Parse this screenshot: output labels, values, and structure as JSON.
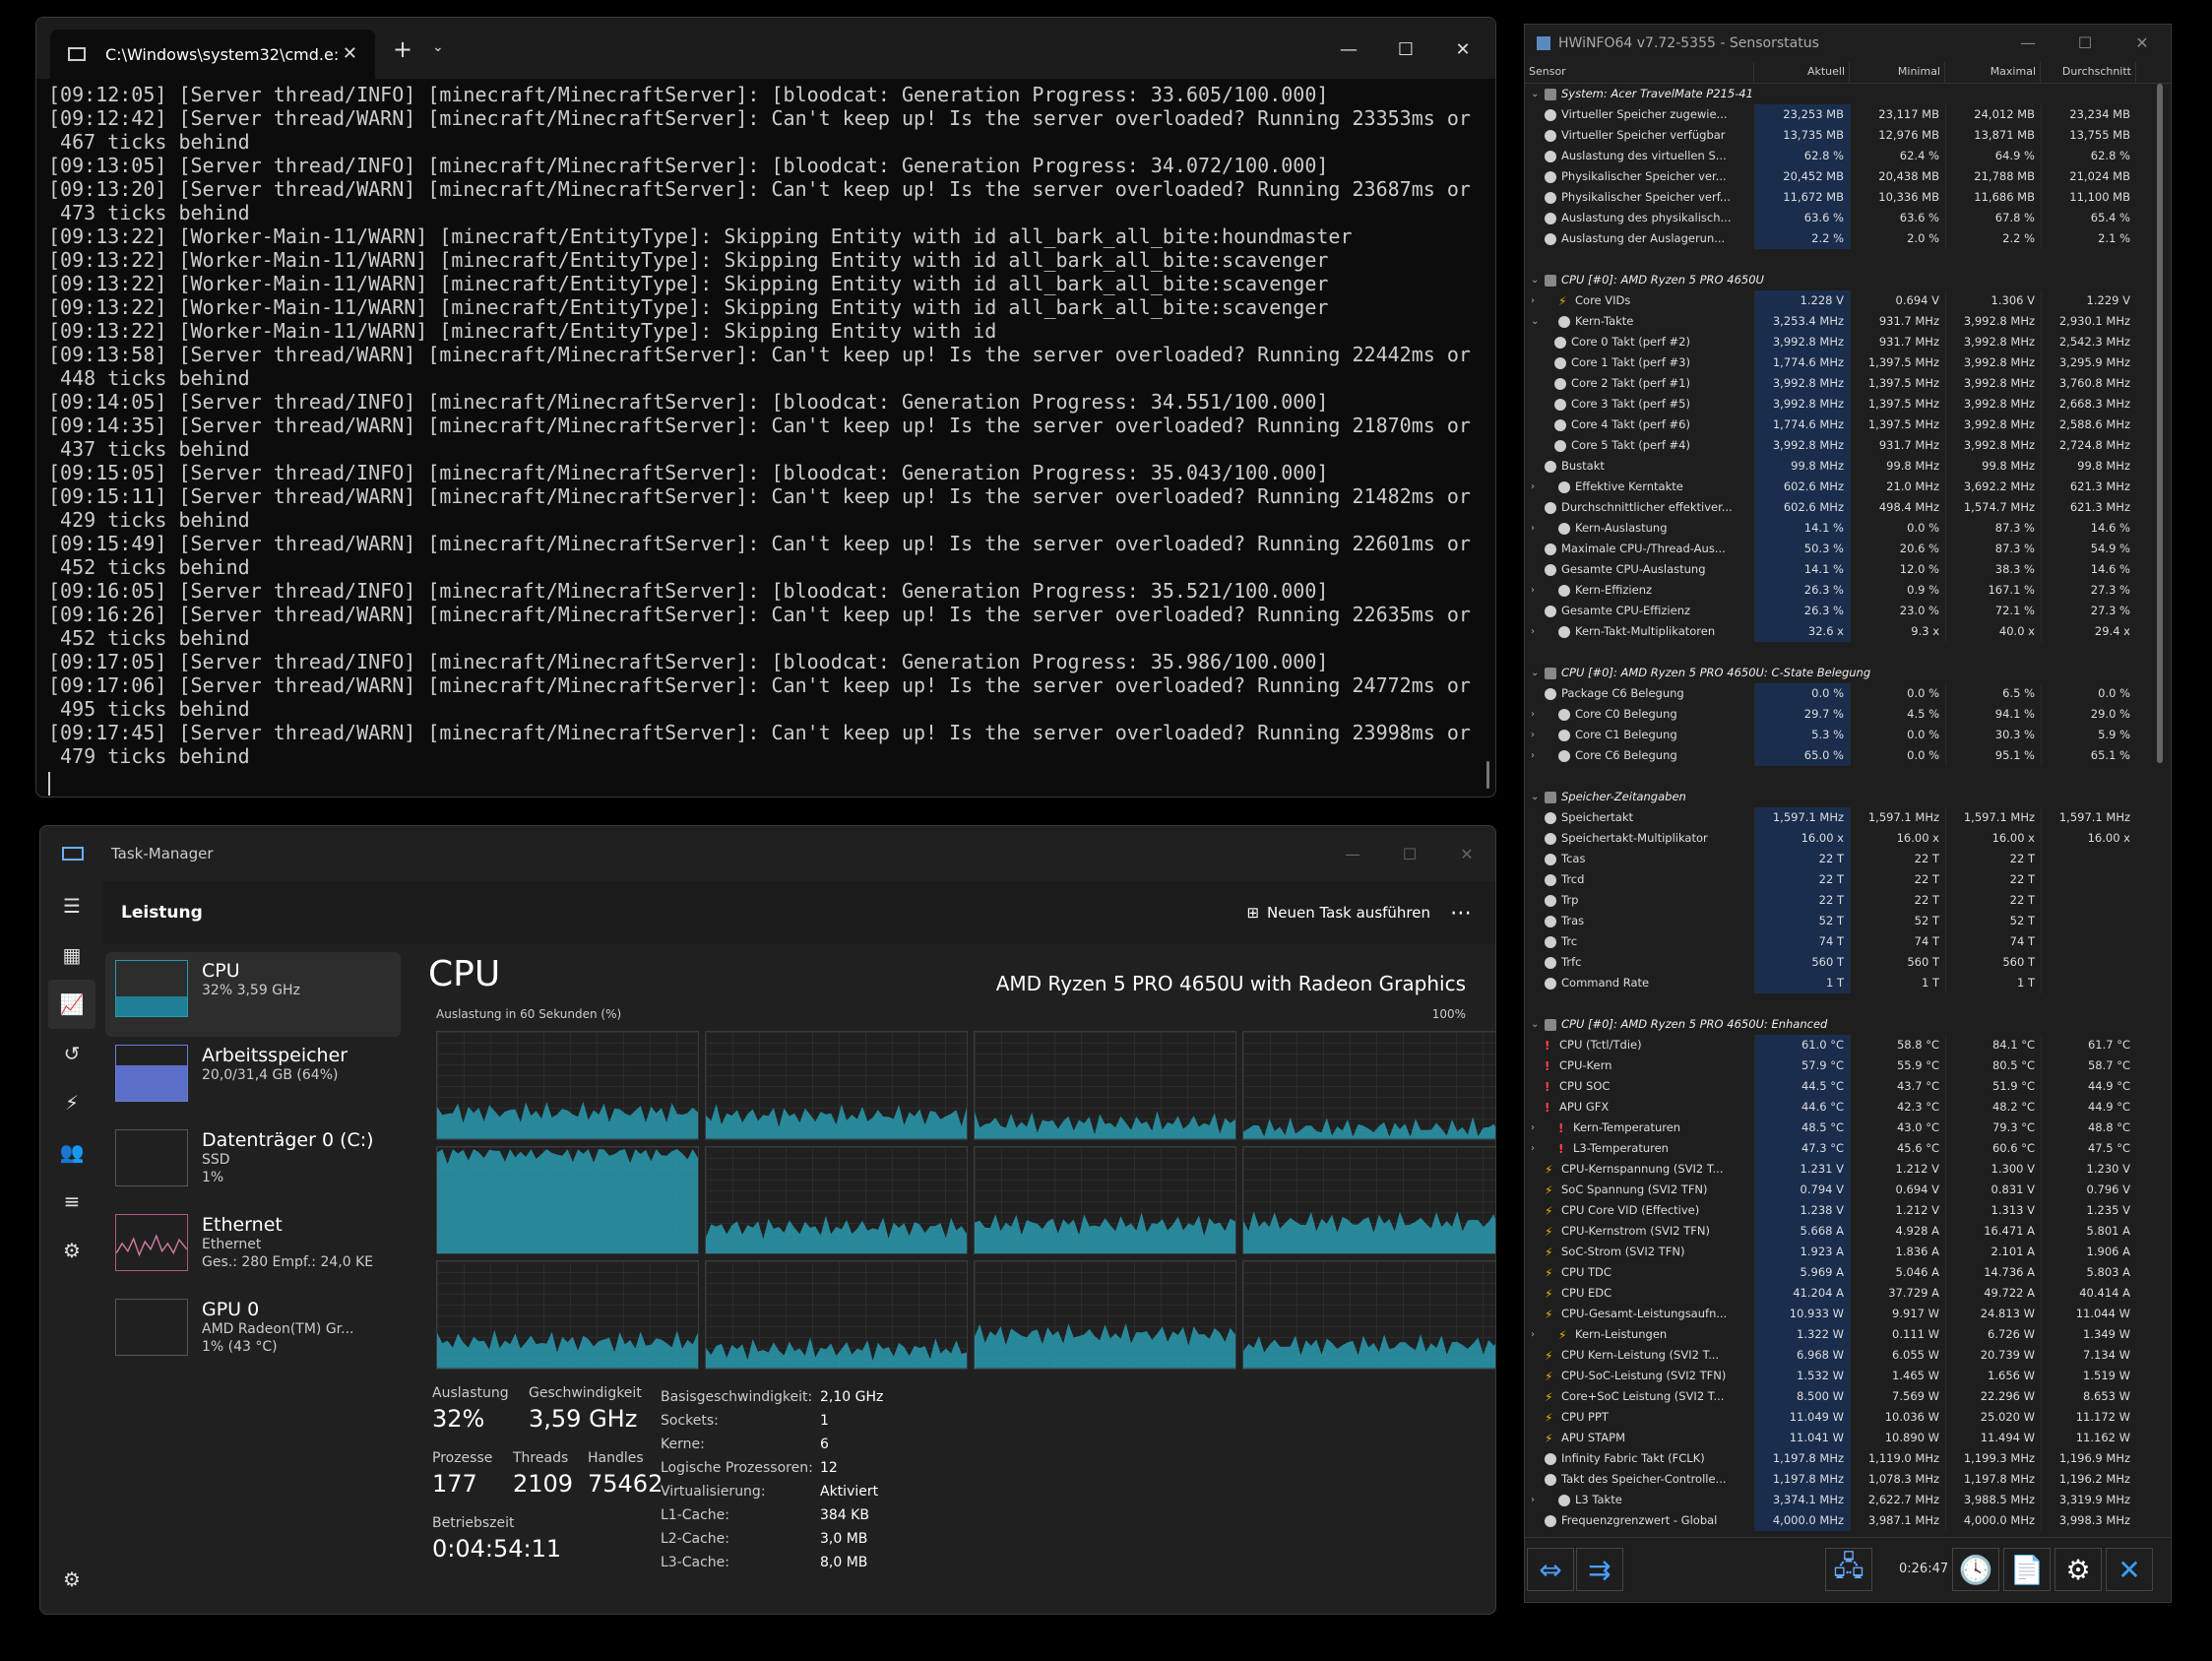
{
  "terminal": {
    "tab_title": "C:\\Windows\\system32\\cmd.e:",
    "lines": [
      "[09:12:05] [Server thread/INFO] [minecraft/MinecraftServer]: [bloodcat: Generation Progress: 33.605/100.000]",
      "[09:12:42] [Server thread/WARN] [minecraft/MinecraftServer]: Can't keep up! Is the server overloaded? Running 23353ms or",
      " 467 ticks behind",
      "[09:13:05] [Server thread/INFO] [minecraft/MinecraftServer]: [bloodcat: Generation Progress: 34.072/100.000]",
      "[09:13:20] [Server thread/WARN] [minecraft/MinecraftServer]: Can't keep up! Is the server overloaded? Running 23687ms or",
      " 473 ticks behind",
      "[09:13:22] [Worker-Main-11/WARN] [minecraft/EntityType]: Skipping Entity with id all_bark_all_bite:houndmaster",
      "[09:13:22] [Worker-Main-11/WARN] [minecraft/EntityType]: Skipping Entity with id all_bark_all_bite:scavenger",
      "[09:13:22] [Worker-Main-11/WARN] [minecraft/EntityType]: Skipping Entity with id all_bark_all_bite:scavenger",
      "[09:13:22] [Worker-Main-11/WARN] [minecraft/EntityType]: Skipping Entity with id all_bark_all_bite:scavenger",
      "[09:13:22] [Worker-Main-11/WARN] [minecraft/EntityType]: Skipping Entity with id",
      "[09:13:58] [Server thread/WARN] [minecraft/MinecraftServer]: Can't keep up! Is the server overloaded? Running 22442ms or",
      " 448 ticks behind",
      "[09:14:05] [Server thread/INFO] [minecraft/MinecraftServer]: [bloodcat: Generation Progress: 34.551/100.000]",
      "[09:14:35] [Server thread/WARN] [minecraft/MinecraftServer]: Can't keep up! Is the server overloaded? Running 21870ms or",
      " 437 ticks behind",
      "[09:15:05] [Server thread/INFO] [minecraft/MinecraftServer]: [bloodcat: Generation Progress: 35.043/100.000]",
      "[09:15:11] [Server thread/WARN] [minecraft/MinecraftServer]: Can't keep up! Is the server overloaded? Running 21482ms or",
      " 429 ticks behind",
      "[09:15:49] [Server thread/WARN] [minecraft/MinecraftServer]: Can't keep up! Is the server overloaded? Running 22601ms or",
      " 452 ticks behind",
      "[09:16:05] [Server thread/INFO] [minecraft/MinecraftServer]: [bloodcat: Generation Progress: 35.521/100.000]",
      "[09:16:26] [Server thread/WARN] [minecraft/MinecraftServer]: Can't keep up! Is the server overloaded? Running 22635ms or",
      " 452 ticks behind",
      "[09:17:05] [Server thread/INFO] [minecraft/MinecraftServer]: [bloodcat: Generation Progress: 35.986/100.000]",
      "[09:17:06] [Server thread/WARN] [minecraft/MinecraftServer]: Can't keep up! Is the server overloaded? Running 24772ms or",
      " 495 ticks behind",
      "[09:17:45] [Server thread/WARN] [minecraft/MinecraftServer]: Can't keep up! Is the server overloaded? Running 23998ms or",
      " 479 ticks behind"
    ]
  },
  "taskmanager": {
    "title": "Task-Manager",
    "header": "Leistung",
    "new_task": "Neuen Task ausführen",
    "sidebar": [
      {
        "name": "CPU",
        "sub1": "32% 3,59 GHz",
        "sub2": ""
      },
      {
        "name": "Arbeitsspeicher",
        "sub1": "20,0/31,4 GB (64%)",
        "sub2": ""
      },
      {
        "name": "Datenträger 0 (C:)",
        "sub1": "SSD",
        "sub2": "1%"
      },
      {
        "name": "Ethernet",
        "sub1": "Ethernet",
        "sub2": "Ges.: 280 Empf.: 24,0 KE"
      },
      {
        "name": "GPU 0",
        "sub1": "AMD Radeon(TM) Gr...",
        "sub2": "1% (43 °C)"
      }
    ],
    "cpu_title": "CPU",
    "cpu_model": "AMD Ryzen 5 PRO 4650U with Radeon Graphics",
    "graph_caption": "Auslastung in 60 Sekunden (%)",
    "graph_max": "100%",
    "stats": {
      "util_label": "Auslastung",
      "util": "32%",
      "speed_label": "Geschwindigkeit",
      "speed": "3,59 GHz",
      "proc_label": "Prozesse",
      "proc": "177",
      "threads_label": "Threads",
      "threads": "2109",
      "handles_label": "Handles",
      "handles": "75462",
      "uptime_label": "Betriebszeit",
      "uptime": "0:04:54:11"
    },
    "details": [
      [
        "Basisgeschwindigkeit:",
        "2,10 GHz"
      ],
      [
        "Sockets:",
        "1"
      ],
      [
        "Kerne:",
        "6"
      ],
      [
        "Logische Prozessoren:",
        "12"
      ],
      [
        "Virtualisierung:",
        "Aktiviert"
      ],
      [
        "L1-Cache:",
        "384 KB"
      ],
      [
        "L2-Cache:",
        "3,0 MB"
      ],
      [
        "L3-Cache:",
        "8,0 MB"
      ]
    ],
    "accent": "#2a9bb0"
  },
  "hwinfo": {
    "title": "HWiNFO64 v7.72-5355 - Sensorstatus",
    "columns": [
      "Sensor",
      "Aktuell",
      "Minimal",
      "Maximal",
      "Durchschnitt"
    ],
    "rows": [
      {
        "t": "g",
        "n": "System: Acer TravelMate P215-41"
      },
      {
        "i": "o",
        "n": "Virtueller Speicher zugewie...",
        "v": [
          "23,253 MB",
          "23,117 MB",
          "24,012 MB",
          "23,234 MB"
        ]
      },
      {
        "i": "o",
        "n": "Virtueller Speicher verfügbar",
        "v": [
          "13,735 MB",
          "12,976 MB",
          "13,871 MB",
          "13,755 MB"
        ]
      },
      {
        "i": "o",
        "n": "Auslastung des virtuellen S...",
        "v": [
          "62.8 %",
          "62.4 %",
          "64.9 %",
          "62.8 %"
        ]
      },
      {
        "i": "o",
        "n": "Physikalischer Speicher ver...",
        "v": [
          "20,452 MB",
          "20,438 MB",
          "21,788 MB",
          "21,024 MB"
        ]
      },
      {
        "i": "o",
        "n": "Physikalischer Speicher verf...",
        "v": [
          "11,672 MB",
          "10,336 MB",
          "11,686 MB",
          "11,100 MB"
        ]
      },
      {
        "i": "o",
        "n": "Auslastung des physikalisch...",
        "v": [
          "63.6 %",
          "63.6 %",
          "67.8 %",
          "65.4 %"
        ]
      },
      {
        "i": "o",
        "n": "Auslastung der Auslagerun...",
        "v": [
          "2.2 %",
          "2.0 %",
          "2.2 %",
          "2.1 %"
        ]
      },
      {
        "t": "b"
      },
      {
        "t": "g",
        "n": "CPU [#0]: AMD Ryzen 5 PRO 4650U"
      },
      {
        "i": "v",
        "x": 1,
        "n": "Core VIDs",
        "v": [
          "1.228 V",
          "0.694 V",
          "1.306 V",
          "1.229 V"
        ]
      },
      {
        "i": "o",
        "x": 2,
        "n": "Kern-Takte",
        "v": [
          "3,253.4 MHz",
          "931.7 MHz",
          "3,992.8 MHz",
          "2,930.1 MHz"
        ]
      },
      {
        "i": "o",
        "d": 1,
        "n": "Core 0 Takt (perf #2)",
        "v": [
          "3,992.8 MHz",
          "931.7 MHz",
          "3,992.8 MHz",
          "2,542.3 MHz"
        ]
      },
      {
        "i": "o",
        "d": 1,
        "n": "Core 1 Takt (perf #3)",
        "v": [
          "1,774.6 MHz",
          "1,397.5 MHz",
          "3,992.8 MHz",
          "3,295.9 MHz"
        ]
      },
      {
        "i": "o",
        "d": 1,
        "n": "Core 2 Takt (perf #1)",
        "v": [
          "3,992.8 MHz",
          "1,397.5 MHz",
          "3,992.8 MHz",
          "3,760.8 MHz"
        ]
      },
      {
        "i": "o",
        "d": 1,
        "n": "Core 3 Takt (perf #5)",
        "v": [
          "3,992.8 MHz",
          "1,397.5 MHz",
          "3,992.8 MHz",
          "2,668.3 MHz"
        ]
      },
      {
        "i": "o",
        "d": 1,
        "n": "Core 4 Takt (perf #6)",
        "v": [
          "1,774.6 MHz",
          "1,397.5 MHz",
          "3,992.8 MHz",
          "2,588.6 MHz"
        ]
      },
      {
        "i": "o",
        "d": 1,
        "n": "Core 5 Takt (perf #4)",
        "v": [
          "3,992.8 MHz",
          "931.7 MHz",
          "3,992.8 MHz",
          "2,724.8 MHz"
        ]
      },
      {
        "i": "o",
        "n": "Bustakt",
        "v": [
          "99.8 MHz",
          "99.8 MHz",
          "99.8 MHz",
          "99.8 MHz"
        ]
      },
      {
        "i": "o",
        "x": 1,
        "n": "Effektive Kerntakte",
        "v": [
          "602.6 MHz",
          "21.0 MHz",
          "3,692.2 MHz",
          "621.3 MHz"
        ]
      },
      {
        "i": "o",
        "n": "Durchschnittlicher effektiver...",
        "v": [
          "602.6 MHz",
          "498.4 MHz",
          "1,574.7 MHz",
          "621.3 MHz"
        ]
      },
      {
        "i": "o",
        "x": 1,
        "n": "Kern-Auslastung",
        "v": [
          "14.1 %",
          "0.0 %",
          "87.3 %",
          "14.6 %"
        ]
      },
      {
        "i": "o",
        "n": "Maximale CPU-/Thread-Aus...",
        "v": [
          "50.3 %",
          "20.6 %",
          "87.3 %",
          "54.9 %"
        ]
      },
      {
        "i": "o",
        "n": "Gesamte CPU-Auslastung",
        "v": [
          "14.1 %",
          "12.0 %",
          "38.3 %",
          "14.6 %"
        ]
      },
      {
        "i": "o",
        "x": 1,
        "n": "Kern-Effizienz",
        "v": [
          "26.3 %",
          "0.9 %",
          "167.1 %",
          "27.3 %"
        ]
      },
      {
        "i": "o",
        "n": "Gesamte CPU-Effizienz",
        "v": [
          "26.3 %",
          "23.0 %",
          "72.1 %",
          "27.3 %"
        ]
      },
      {
        "i": "o",
        "x": 1,
        "n": "Kern-Takt-Multiplikatoren",
        "v": [
          "32.6 x",
          "9.3 x",
          "40.0 x",
          "29.4 x"
        ]
      },
      {
        "t": "b"
      },
      {
        "t": "g",
        "n": "CPU [#0]: AMD Ryzen 5 PRO 4650U: C-State Belegung"
      },
      {
        "i": "o",
        "n": "Package C6 Belegung",
        "v": [
          "0.0 %",
          "0.0 %",
          "6.5 %",
          "0.0 %"
        ]
      },
      {
        "i": "o",
        "x": 1,
        "n": "Core C0 Belegung",
        "v": [
          "29.7 %",
          "4.5 %",
          "94.1 %",
          "29.0 %"
        ]
      },
      {
        "i": "o",
        "x": 1,
        "n": "Core C1 Belegung",
        "v": [
          "5.3 %",
          "0.0 %",
          "30.3 %",
          "5.9 %"
        ]
      },
      {
        "i": "o",
        "x": 1,
        "n": "Core C6 Belegung",
        "v": [
          "65.0 %",
          "0.0 %",
          "95.1 %",
          "65.1 %"
        ]
      },
      {
        "t": "b"
      },
      {
        "t": "g",
        "n": "Speicher-Zeitangaben"
      },
      {
        "i": "o",
        "n": "Speichertakt",
        "v": [
          "1,597.1 MHz",
          "1,597.1 MHz",
          "1,597.1 MHz",
          "1,597.1 MHz"
        ]
      },
      {
        "i": "o",
        "n": "Speichertakt-Multiplikator",
        "v": [
          "16.00 x",
          "16.00 x",
          "16.00 x",
          "16.00 x"
        ]
      },
      {
        "i": "o",
        "n": "Tcas",
        "v": [
          "22 T",
          "22 T",
          "22 T",
          ""
        ]
      },
      {
        "i": "o",
        "n": "Trcd",
        "v": [
          "22 T",
          "22 T",
          "22 T",
          ""
        ]
      },
      {
        "i": "o",
        "n": "Trp",
        "v": [
          "22 T",
          "22 T",
          "22 T",
          ""
        ]
      },
      {
        "i": "o",
        "n": "Tras",
        "v": [
          "52 T",
          "52 T",
          "52 T",
          ""
        ]
      },
      {
        "i": "o",
        "n": "Trc",
        "v": [
          "74 T",
          "74 T",
          "74 T",
          ""
        ]
      },
      {
        "i": "o",
        "n": "Trfc",
        "v": [
          "560 T",
          "560 T",
          "560 T",
          ""
        ]
      },
      {
        "i": "o",
        "n": "Command Rate",
        "v": [
          "1 T",
          "1 T",
          "1 T",
          ""
        ]
      },
      {
        "t": "b"
      },
      {
        "t": "g",
        "n": "CPU [#0]: AMD Ryzen 5 PRO 4650U: Enhanced"
      },
      {
        "i": "t",
        "n": "CPU (Tctl/Tdie)",
        "v": [
          "61.0 °C",
          "58.8 °C",
          "84.1 °C",
          "61.7 °C"
        ]
      },
      {
        "i": "t",
        "n": "CPU-Kern",
        "v": [
          "57.9 °C",
          "55.9 °C",
          "80.5 °C",
          "58.7 °C"
        ]
      },
      {
        "i": "t",
        "n": "CPU SOC",
        "v": [
          "44.5 °C",
          "43.7 °C",
          "51.9 °C",
          "44.9 °C"
        ]
      },
      {
        "i": "t",
        "n": "APU GFX",
        "v": [
          "44.6 °C",
          "42.3 °C",
          "48.2 °C",
          "44.9 °C"
        ]
      },
      {
        "i": "t",
        "x": 1,
        "n": "Kern-Temperaturen",
        "v": [
          "48.5 °C",
          "43.0 °C",
          "79.3 °C",
          "48.8 °C"
        ]
      },
      {
        "i": "t",
        "x": 1,
        "n": "L3-Temperaturen",
        "v": [
          "47.3 °C",
          "45.6 °C",
          "60.6 °C",
          "47.5 °C"
        ]
      },
      {
        "i": "v",
        "n": "CPU-Kernspannung (SVI2 T...",
        "v": [
          "1.231 V",
          "1.212 V",
          "1.300 V",
          "1.230 V"
        ]
      },
      {
        "i": "v",
        "n": "SoC Spannung (SVI2 TFN)",
        "v": [
          "0.794 V",
          "0.694 V",
          "0.831 V",
          "0.796 V"
        ]
      },
      {
        "i": "v",
        "n": "CPU Core VID (Effective)",
        "v": [
          "1.238 V",
          "1.212 V",
          "1.313 V",
          "1.235 V"
        ]
      },
      {
        "i": "v",
        "n": "CPU-Kernstrom (SVI2 TFN)",
        "v": [
          "5.668 A",
          "4.928 A",
          "16.471 A",
          "5.801 A"
        ]
      },
      {
        "i": "v",
        "n": "SoC-Strom (SVI2 TFN)",
        "v": [
          "1.923 A",
          "1.836 A",
          "2.101 A",
          "1.906 A"
        ]
      },
      {
        "i": "v",
        "n": "CPU TDC",
        "v": [
          "5.969 A",
          "5.046 A",
          "14.736 A",
          "5.803 A"
        ]
      },
      {
        "i": "v",
        "n": "CPU EDC",
        "v": [
          "41.204 A",
          "37.729 A",
          "49.722 A",
          "40.414 A"
        ]
      },
      {
        "i": "v",
        "n": "CPU-Gesamt-Leistungsaufn...",
        "v": [
          "10.933 W",
          "9.917 W",
          "24.813 W",
          "11.044 W"
        ]
      },
      {
        "i": "v",
        "x": 1,
        "n": "Kern-Leistungen",
        "v": [
          "1.322 W",
          "0.111 W",
          "6.726 W",
          "1.349 W"
        ]
      },
      {
        "i": "v",
        "n": "CPU Kern-Leistung (SVI2 T...",
        "v": [
          "6.968 W",
          "6.055 W",
          "20.739 W",
          "7.134 W"
        ]
      },
      {
        "i": "v",
        "n": "CPU-SoC-Leistung (SVI2 TFN)",
        "v": [
          "1.532 W",
          "1.465 W",
          "1.656 W",
          "1.519 W"
        ]
      },
      {
        "i": "v",
        "n": "Core+SoC Leistung (SVI2 T...",
        "v": [
          "8.500 W",
          "7.569 W",
          "22.296 W",
          "8.653 W"
        ]
      },
      {
        "i": "v",
        "n": "CPU PPT",
        "v": [
          "11.049 W",
          "10.036 W",
          "25.020 W",
          "11.172 W"
        ]
      },
      {
        "i": "v",
        "n": "APU STAPM",
        "v": [
          "11.041 W",
          "10.890 W",
          "11.494 W",
          "11.162 W"
        ]
      },
      {
        "i": "o",
        "n": "Infinity Fabric Takt (FCLK)",
        "v": [
          "1,197.8 MHz",
          "1,119.0 MHz",
          "1,199.3 MHz",
          "1,196.9 MHz"
        ]
      },
      {
        "i": "o",
        "n": "Takt des Speicher-Controlle...",
        "v": [
          "1,197.8 MHz",
          "1,078.3 MHz",
          "1,197.8 MHz",
          "1,196.2 MHz"
        ]
      },
      {
        "i": "o",
        "x": 1,
        "n": "L3 Takte",
        "v": [
          "3,374.1 MHz",
          "2,622.7 MHz",
          "3,988.5 MHz",
          "3,319.9 MHz"
        ]
      },
      {
        "i": "o",
        "n": "Frequenzgrenzwert - Global",
        "v": [
          "4,000.0 MHz",
          "3,987.1 MHz",
          "4,000.0 MHz",
          "3,998.3 MHz"
        ]
      }
    ],
    "timer": "0:26:47"
  }
}
